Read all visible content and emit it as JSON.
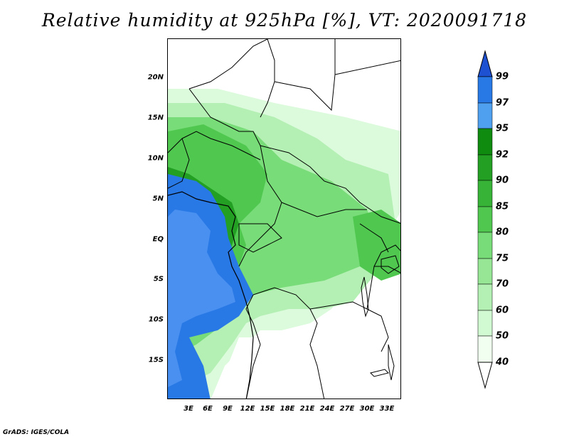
{
  "title": "Relative humidity at 925hPa [%], VT: 2020091718",
  "credit": "GrADS: IGES/COLA",
  "lat_labels": [
    "20N",
    "15N",
    "10N",
    "5N",
    "EQ",
    "5S",
    "10S",
    "15S"
  ],
  "lon_labels": [
    "3E",
    "6E",
    "9E",
    "12E",
    "15E",
    "18E",
    "21E",
    "24E",
    "27E",
    "30E",
    "33E"
  ],
  "colorbar": {
    "labels": [
      "99",
      "97",
      "95",
      "92",
      "90",
      "85",
      "80",
      "75",
      "70",
      "60",
      "50",
      "40"
    ],
    "colors": [
      "#1e50d2",
      "#2878e6",
      "#50a0f0",
      "#0f8c0f",
      "#23a023",
      "#37b437",
      "#50c850",
      "#78dc78",
      "#96e696",
      "#b4f0b4",
      "#d2fad2",
      "#f0fff0"
    ]
  }
}
